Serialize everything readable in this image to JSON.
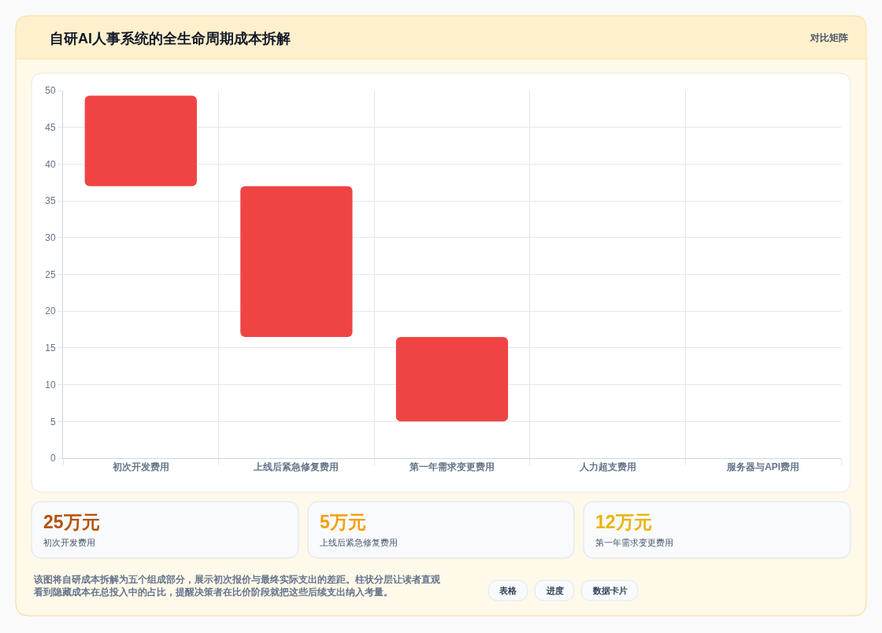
{
  "chart_data": {
    "type": "bar",
    "title": "自研AI人事系统的全生命周期成本拆解",
    "categories": [
      "初次开发费用",
      "上线后紧急修复费用",
      "第一年需求变更费用",
      "人力超支费用",
      "服务器与API费用"
    ],
    "values": [
      12.3,
      20.5,
      11.5,
      null,
      null
    ],
    "base": [
      37,
      16.5,
      5,
      null,
      null
    ],
    "color": "#ef4444",
    "ylim": [
      0,
      50
    ],
    "yticks": [
      0,
      5,
      10,
      15,
      20,
      25,
      30,
      35,
      40,
      45,
      50
    ],
    "grid": true,
    "annotations": [
      "对比矩阵",
      "25万元",
      "初次开发费用",
      "5万元",
      "上线后紧急修复费用",
      "12万元",
      "第一年需求变更费用",
      "该图将自研成本拆解为五个组成部分，展示初次报价与最终实际支出的差距。柱状分层让读者直观看到隐藏成本在总投入中的占比，提醒决策者在比价阶段就把这些后续支出纳入考量。",
      "表格",
      "进度",
      "数据卡片"
    ]
  }
}
